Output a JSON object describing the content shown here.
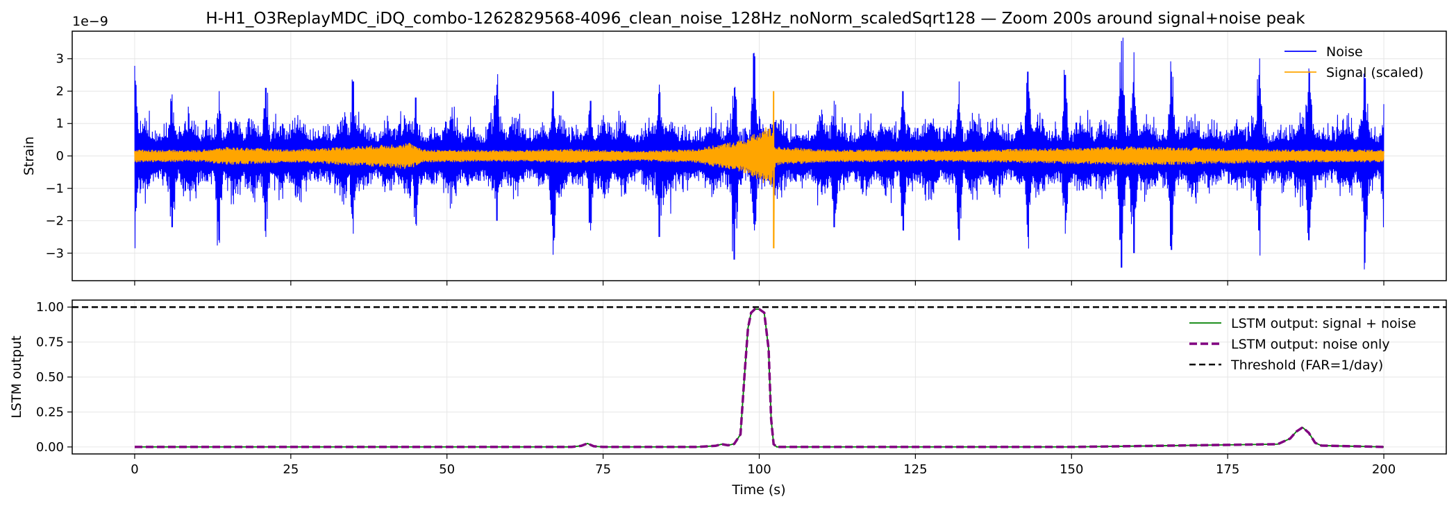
{
  "chart_data": [
    {
      "type": "line",
      "title": "H-H1_O3ReplayMDC_iDQ_combo-1262829568-4096_clean_noise_128Hz_noNorm_scaledSqrt128 — Zoom 200s around signal+noise peak",
      "xlabel": "",
      "ylabel": "Strain",
      "offset_text": "1e−9",
      "xlim": [
        -10,
        210
      ],
      "ylim": [
        -3.85,
        3.85
      ],
      "y_scale_factor": 1e-09,
      "yticks": [
        -3,
        -2,
        -1,
        0,
        1,
        2,
        3
      ],
      "ytick_labels": [
        "−3",
        "−2",
        "−1",
        "0",
        "1",
        "2",
        "3"
      ],
      "xticks": [
        0,
        25,
        50,
        75,
        100,
        125,
        150,
        175,
        200
      ],
      "grid": true,
      "legend_position": "top-right",
      "series": [
        {
          "name": "Noise",
          "color": "#0000ff",
          "style": "solid",
          "kind": "dense-oscillation",
          "x_range": [
            0,
            200
          ],
          "typical_amplitude": 1.3,
          "burst_peaks": [
            {
              "x": 0.0,
              "ymax": 2.78,
              "ymin": -2.85
            },
            {
              "x": 6.0,
              "ymax": 1.9,
              "ymin": -2.2
            },
            {
              "x": 13.5,
              "ymax": 2.0,
              "ymin": -2.6
            },
            {
              "x": 21.0,
              "ymax": 2.1,
              "ymin": -2.5
            },
            {
              "x": 35.0,
              "ymax": 2.3,
              "ymin": -2.4
            },
            {
              "x": 45.0,
              "ymax": 1.8,
              "ymin": -2.1
            },
            {
              "x": 58.0,
              "ymax": 2.2,
              "ymin": -2.0
            },
            {
              "x": 67.0,
              "ymax": 2.0,
              "ymin": -3.05
            },
            {
              "x": 73.0,
              "ymax": 1.7,
              "ymin": -2.3
            },
            {
              "x": 84.0,
              "ymax": 2.2,
              "ymin": -2.5
            },
            {
              "x": 96.0,
              "ymax": 2.1,
              "ymin": -3.2
            },
            {
              "x": 99.2,
              "ymax": 3.18,
              "ymin": -2.3
            },
            {
              "x": 112.0,
              "ymax": 1.7,
              "ymin": -2.2
            },
            {
              "x": 123.0,
              "ymax": 2.0,
              "ymin": -2.3
            },
            {
              "x": 132.0,
              "ymax": 2.3,
              "ymin": -2.6
            },
            {
              "x": 143.0,
              "ymax": 2.6,
              "ymin": -2.5
            },
            {
              "x": 149.0,
              "ymax": 2.5,
              "ymin": -2.4
            },
            {
              "x": 158.0,
              "ymax": 3.55,
              "ymin": -3.45
            },
            {
              "x": 160.0,
              "ymax": 3.2,
              "ymin": -3.0
            },
            {
              "x": 166.0,
              "ymax": 2.6,
              "ymin": -2.9
            },
            {
              "x": 180.0,
              "ymax": 2.5,
              "ymin": -2.3
            },
            {
              "x": 188.0,
              "ymax": 2.7,
              "ymin": -2.6
            },
            {
              "x": 197.0,
              "ymax": 2.4,
              "ymin": -3.3
            },
            {
              "x": 200.0,
              "ymax": 1.6,
              "ymin": -2.2
            }
          ]
        },
        {
          "name": "Signal (scaled)",
          "color": "#ffa500",
          "style": "solid",
          "kind": "dense-oscillation",
          "x_range": [
            0,
            200
          ],
          "typical_amplitude": 0.18,
          "envelope": [
            {
              "x": 0,
              "a": 0.2
            },
            {
              "x": 10,
              "a": 0.18
            },
            {
              "x": 15,
              "a": 0.28
            },
            {
              "x": 25,
              "a": 0.2
            },
            {
              "x": 35,
              "a": 0.3
            },
            {
              "x": 40,
              "a": 0.35
            },
            {
              "x": 44,
              "a": 0.42
            },
            {
              "x": 46,
              "a": 0.2
            },
            {
              "x": 60,
              "a": 0.18
            },
            {
              "x": 70,
              "a": 0.22
            },
            {
              "x": 80,
              "a": 0.15
            },
            {
              "x": 90,
              "a": 0.22
            },
            {
              "x": 97,
              "a": 0.5
            },
            {
              "x": 100,
              "a": 0.75
            },
            {
              "x": 101.8,
              "a": 1.0
            },
            {
              "x": 102.6,
              "a": 0.3
            },
            {
              "x": 110,
              "a": 0.2
            },
            {
              "x": 130,
              "a": 0.18
            },
            {
              "x": 150,
              "a": 0.25
            },
            {
              "x": 160,
              "a": 0.3
            },
            {
              "x": 172,
              "a": 0.25
            },
            {
              "x": 185,
              "a": 0.2
            },
            {
              "x": 200,
              "a": 0.2
            }
          ],
          "spike": {
            "x": 102.3,
            "ymax": 2.0,
            "ymin": -2.85
          }
        }
      ]
    },
    {
      "type": "line",
      "title": "",
      "xlabel": "Time (s)",
      "ylabel": "LSTM output",
      "xlim": [
        -10,
        210
      ],
      "ylim": [
        -0.05,
        1.05
      ],
      "yticks": [
        0.0,
        0.25,
        0.5,
        0.75,
        1.0
      ],
      "ytick_labels": [
        "0.00",
        "0.25",
        "0.50",
        "0.75",
        "1.00"
      ],
      "xticks": [
        0,
        25,
        50,
        75,
        100,
        125,
        150,
        175,
        200
      ],
      "xtick_labels": [
        "0",
        "25",
        "50",
        "75",
        "100",
        "125",
        "150",
        "175",
        "200"
      ],
      "grid": true,
      "legend_position": "top-right",
      "series": [
        {
          "name": "LSTM output: signal + noise",
          "color": "#008000",
          "style": "solid",
          "x": [
            0,
            70,
            71.5,
            72.5,
            73.5,
            75,
            90,
            93,
            94,
            95,
            96,
            97,
            97.7,
            98.2,
            98.7,
            99.3,
            100,
            100.8,
            101.5,
            101.9,
            102.3,
            102.8,
            110,
            150,
            183,
            185,
            186,
            187,
            188,
            189,
            190,
            200
          ],
          "y": [
            0,
            0,
            0.008,
            0.025,
            0.005,
            0,
            0,
            0.008,
            0.02,
            0.012,
            0.022,
            0.09,
            0.55,
            0.85,
            0.96,
            0.985,
            0.985,
            0.96,
            0.7,
            0.2,
            0.02,
            0,
            0,
            0,
            0.02,
            0.06,
            0.11,
            0.14,
            0.1,
            0.03,
            0.01,
            0
          ]
        },
        {
          "name": "LSTM output: noise only",
          "color": "#800080",
          "style": "dashed",
          "x": [
            0,
            70,
            71.5,
            72.5,
            73.5,
            75,
            90,
            93,
            94,
            95,
            96,
            97,
            97.7,
            98.2,
            98.7,
            99.3,
            100,
            100.8,
            101.5,
            101.9,
            102.3,
            102.8,
            110,
            150,
            183,
            185,
            186,
            187,
            188,
            189,
            190,
            200
          ],
          "y": [
            0,
            0,
            0.008,
            0.025,
            0.005,
            0,
            0,
            0.008,
            0.02,
            0.012,
            0.022,
            0.09,
            0.55,
            0.85,
            0.96,
            0.985,
            0.985,
            0.96,
            0.7,
            0.2,
            0.02,
            0,
            0,
            0,
            0.02,
            0.06,
            0.11,
            0.14,
            0.1,
            0.03,
            0.01,
            0
          ]
        },
        {
          "name": "Threshold (FAR=1/day)",
          "color": "#000000",
          "style": "dashed",
          "kind": "hline",
          "y": 1.0
        }
      ]
    }
  ]
}
